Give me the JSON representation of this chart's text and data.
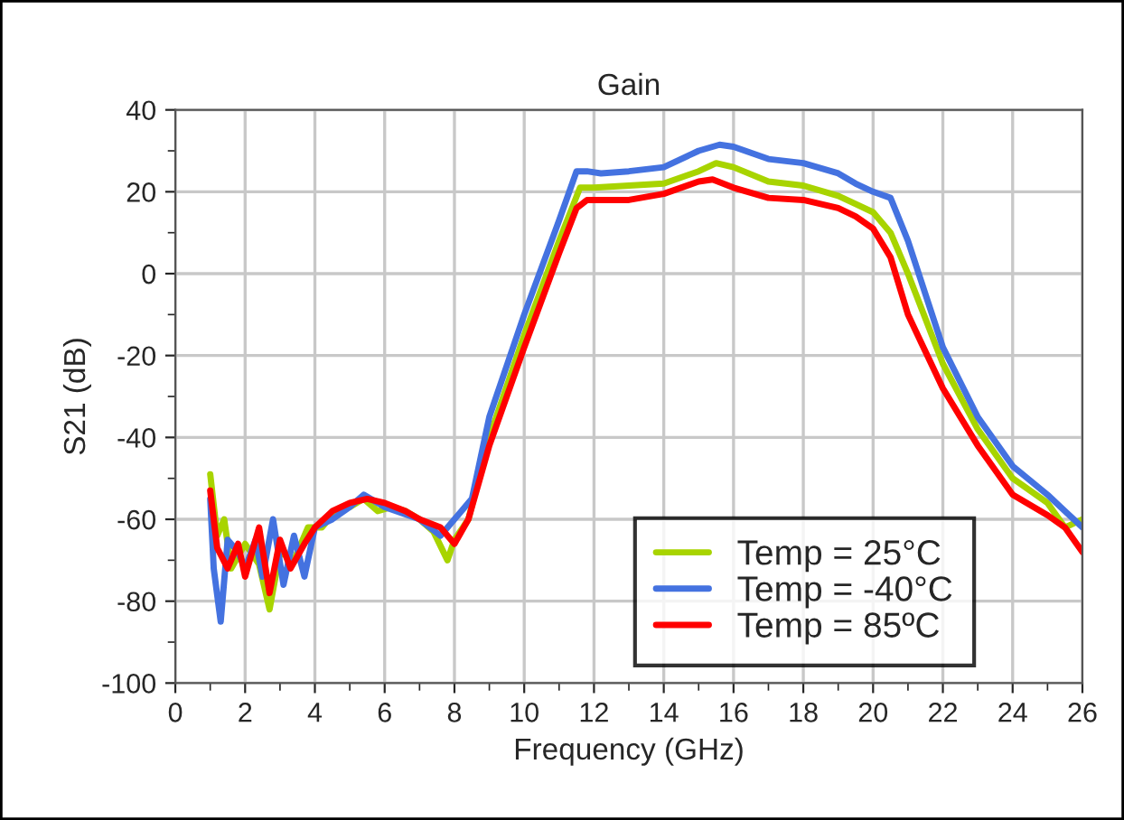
{
  "chart_data": {
    "type": "line",
    "title": "Gain",
    "xlabel": "Frequency (GHz)",
    "ylabel": "S21 (dB)",
    "xlim": [
      0,
      26
    ],
    "ylim": [
      -100,
      40
    ],
    "xticks": [
      0,
      {
        "value": 1,
        "label": null
      },
      2,
      {
        "value": 3,
        "label": null
      },
      4,
      {
        "value": 5,
        "label": null
      },
      6,
      {
        "value": 7,
        "label": null
      },
      8,
      {
        "value": 9,
        "label": null
      },
      10,
      {
        "value": 11,
        "label": null
      },
      12,
      {
        "value": 13,
        "label": null
      },
      14,
      {
        "value": 15,
        "label": null
      },
      16,
      {
        "value": 17,
        "label": null
      },
      18,
      {
        "value": 19,
        "label": null
      },
      20,
      {
        "value": 21,
        "label": null
      },
      22,
      {
        "value": 23,
        "label": null
      },
      24,
      {
        "value": 25,
        "label": null
      },
      26
    ],
    "yticks": [
      -100,
      {
        "value": -90,
        "label": null
      },
      -80,
      {
        "value": -70,
        "label": null
      },
      -60,
      {
        "value": -50,
        "label": null
      },
      -40,
      {
        "value": -30,
        "label": null
      },
      -20,
      {
        "value": -10,
        "label": null
      },
      0,
      {
        "value": 10,
        "label": null
      },
      20,
      {
        "value": 30,
        "label": null
      },
      40
    ],
    "grid": true,
    "legend": "bottom right",
    "marker": "none",
    "line_style": "solid",
    "series": [
      {
        "name": "Temp = 25°C",
        "color": "#a8d400",
        "x": [
          1.0,
          1.2,
          1.4,
          1.6,
          2.0,
          2.4,
          2.7,
          3.0,
          3.4,
          3.8,
          4.2,
          4.6,
          5.0,
          5.4,
          5.8,
          6.2,
          6.6,
          7.0,
          7.4,
          7.8,
          8.0,
          8.4,
          9.0,
          10.0,
          11.0,
          11.6,
          12.0,
          13.0,
          14.0,
          15.0,
          15.5,
          16.0,
          17.0,
          18.0,
          19.0,
          19.5,
          20.0,
          20.5,
          21.0,
          22.0,
          23.0,
          24.0,
          25.0,
          25.5,
          26.0
        ],
        "values": [
          -49,
          -64,
          -60,
          -72,
          -66,
          -71,
          -82,
          -68,
          -70,
          -62,
          -62,
          -58,
          -57,
          -55,
          -58,
          -57,
          -58,
          -60,
          -63,
          -70,
          -65,
          -60,
          -40,
          -15,
          8,
          21,
          21,
          21.5,
          22,
          25,
          27,
          26,
          22.5,
          21.5,
          19,
          17,
          15,
          10,
          0,
          -22,
          -38,
          -50,
          -56,
          -62,
          -60
        ]
      },
      {
        "name": "Temp = -40°C",
        "color": "#4472e0",
        "x": [
          1.0,
          1.1,
          1.3,
          1.5,
          1.8,
          2.0,
          2.3,
          2.5,
          2.8,
          3.1,
          3.4,
          3.7,
          4.0,
          4.5,
          5.0,
          5.4,
          6.0,
          7.0,
          7.6,
          8.0,
          8.5,
          9.0,
          10.0,
          11.0,
          11.5,
          11.8,
          12.2,
          13.0,
          14.0,
          15.0,
          15.6,
          16.0,
          17.0,
          18.0,
          19.0,
          19.5,
          20.0,
          20.5,
          21.0,
          22.0,
          23.0,
          24.0,
          25.0,
          25.5,
          26.0
        ],
        "values": [
          -55,
          -72,
          -85,
          -65,
          -68,
          -72,
          -65,
          -74,
          -60,
          -76,
          -64,
          -74,
          -62,
          -60,
          -57,
          -54,
          -57,
          -60,
          -64,
          -60,
          -55,
          -35,
          -10,
          13,
          25,
          25,
          24.5,
          25,
          26,
          30,
          31.5,
          31,
          28,
          27,
          24.5,
          22,
          20,
          18.5,
          8,
          -18,
          -35,
          -47,
          -54,
          -58,
          -62
        ]
      },
      {
        "name": "Temp = 85ºC",
        "color": "#ff0000",
        "x": [
          1.0,
          1.2,
          1.5,
          1.8,
          2.0,
          2.4,
          2.7,
          3.0,
          3.3,
          3.7,
          4.0,
          4.5,
          5.0,
          5.5,
          6.0,
          6.6,
          7.0,
          7.6,
          8.0,
          8.4,
          9.0,
          10.0,
          11.0,
          11.5,
          11.8,
          13.0,
          14.0,
          15.0,
          15.4,
          16.0,
          17.0,
          18.0,
          19.0,
          19.5,
          20.0,
          20.5,
          21.0,
          22.0,
          23.0,
          24.0,
          25.0,
          25.5,
          26.0
        ],
        "values": [
          -53,
          -67,
          -72,
          -66,
          -74,
          -62,
          -78,
          -65,
          -72,
          -66,
          -62,
          -58,
          -56,
          -55,
          -56,
          -58,
          -60,
          -62,
          -66,
          -60,
          -42,
          -18,
          5,
          16,
          18,
          18,
          19.5,
          22.5,
          23,
          21,
          18.5,
          18,
          16,
          14,
          11,
          4,
          -10,
          -28,
          -42,
          -54,
          -59,
          -62,
          -68
        ]
      }
    ]
  }
}
